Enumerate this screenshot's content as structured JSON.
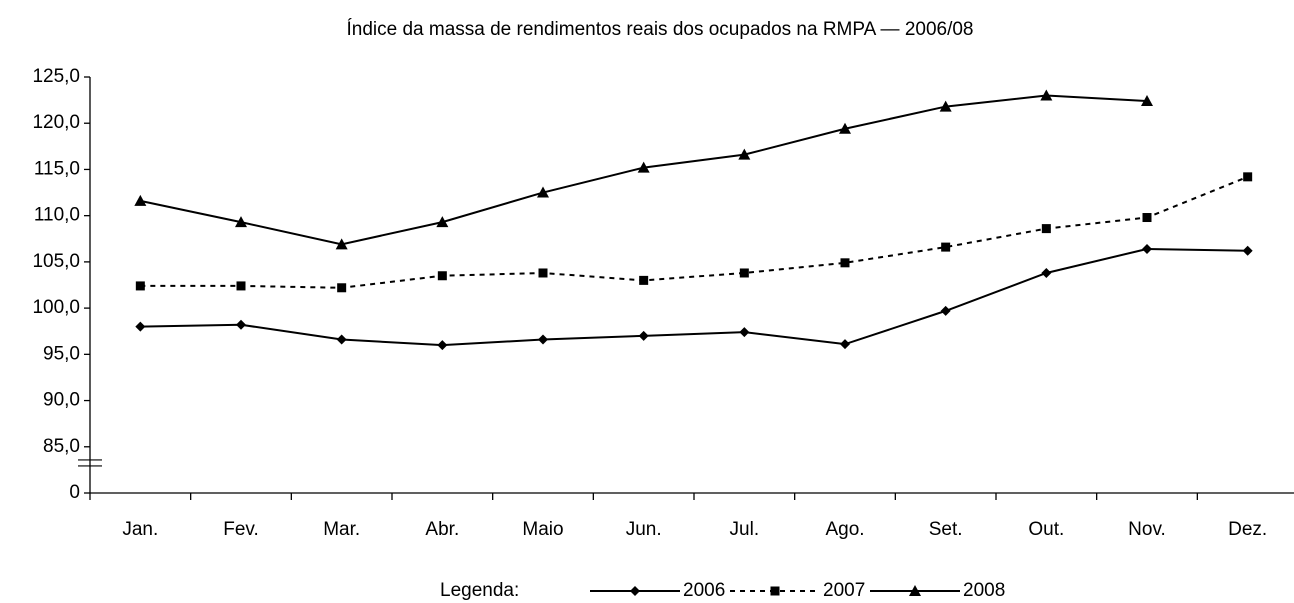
{
  "chart_data": {
    "type": "line",
    "title": "Índice da massa de rendimentos reais dos ocupados na RMPA — 2006/08",
    "categories": [
      "Jan.",
      "Fev.",
      "Mar.",
      "Abr.",
      "Maio",
      "Jun.",
      "Jul.",
      "Ago.",
      "Set.",
      "Out.",
      "Nov.",
      "Dez."
    ],
    "series": [
      {
        "name": "2006",
        "color": "#000000",
        "marker": "diamond",
        "dashed": false,
        "values": [
          98.0,
          98.2,
          96.6,
          96.0,
          96.6,
          97.0,
          97.4,
          96.1,
          99.7,
          103.8,
          106.4,
          106.2
        ]
      },
      {
        "name": "2007",
        "color": "#000000",
        "marker": "square",
        "dashed": true,
        "values": [
          102.4,
          102.4,
          102.2,
          103.5,
          103.8,
          103.0,
          103.8,
          104.9,
          106.6,
          108.6,
          109.8,
          114.2
        ]
      },
      {
        "name": "2008",
        "color": "#000000",
        "marker": "triangle",
        "dashed": false,
        "values": [
          111.6,
          109.3,
          106.9,
          109.3,
          112.5,
          115.2,
          116.6,
          119.4,
          121.8,
          123.0,
          122.4,
          null
        ]
      }
    ],
    "ylim": [
      0,
      125
    ],
    "yticks": [
      0,
      {
        "value": 85,
        "label": "85,0"
      },
      {
        "value": 90,
        "label": "90,0"
      },
      {
        "value": 95,
        "label": "95,0"
      },
      {
        "value": 100,
        "label": "100,0"
      },
      {
        "value": 105,
        "label": "105,0"
      },
      {
        "value": 110,
        "label": "110,0"
      },
      {
        "value": 115,
        "label": "115,0"
      },
      {
        "value": 120,
        "label": "120,0"
      },
      {
        "value": 125,
        "label": "125,0"
      }
    ],
    "axis_break": true,
    "legend_title": "Legenda:",
    "legend": "bottom"
  }
}
